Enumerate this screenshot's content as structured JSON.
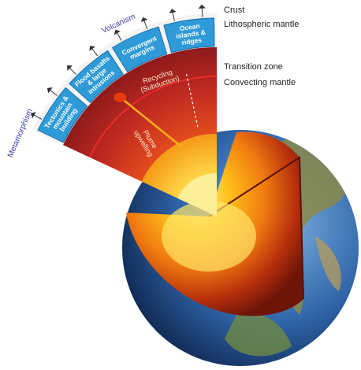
{
  "margin_labels": {
    "metamorphism": "Metamorphism",
    "volcanism": "Volcanism"
  },
  "boxes": [
    {
      "lines": [
        "Tectonics &",
        "mountain",
        "building"
      ]
    },
    {
      "lines": [
        "Flood basalts",
        "& large",
        "intrusions"
      ]
    },
    {
      "lines": [
        "Convergent",
        "margins"
      ]
    },
    {
      "lines": [
        "Ocean",
        "islands &",
        "ridges"
      ]
    }
  ],
  "layers": [
    "Crust",
    "Lithospheric mantle",
    "Transition zone",
    "Convecting mantle"
  ],
  "processes": {
    "recycling": [
      "Recycling",
      "(Subduction)"
    ],
    "plume": [
      "Plume",
      "upwelling"
    ]
  }
}
